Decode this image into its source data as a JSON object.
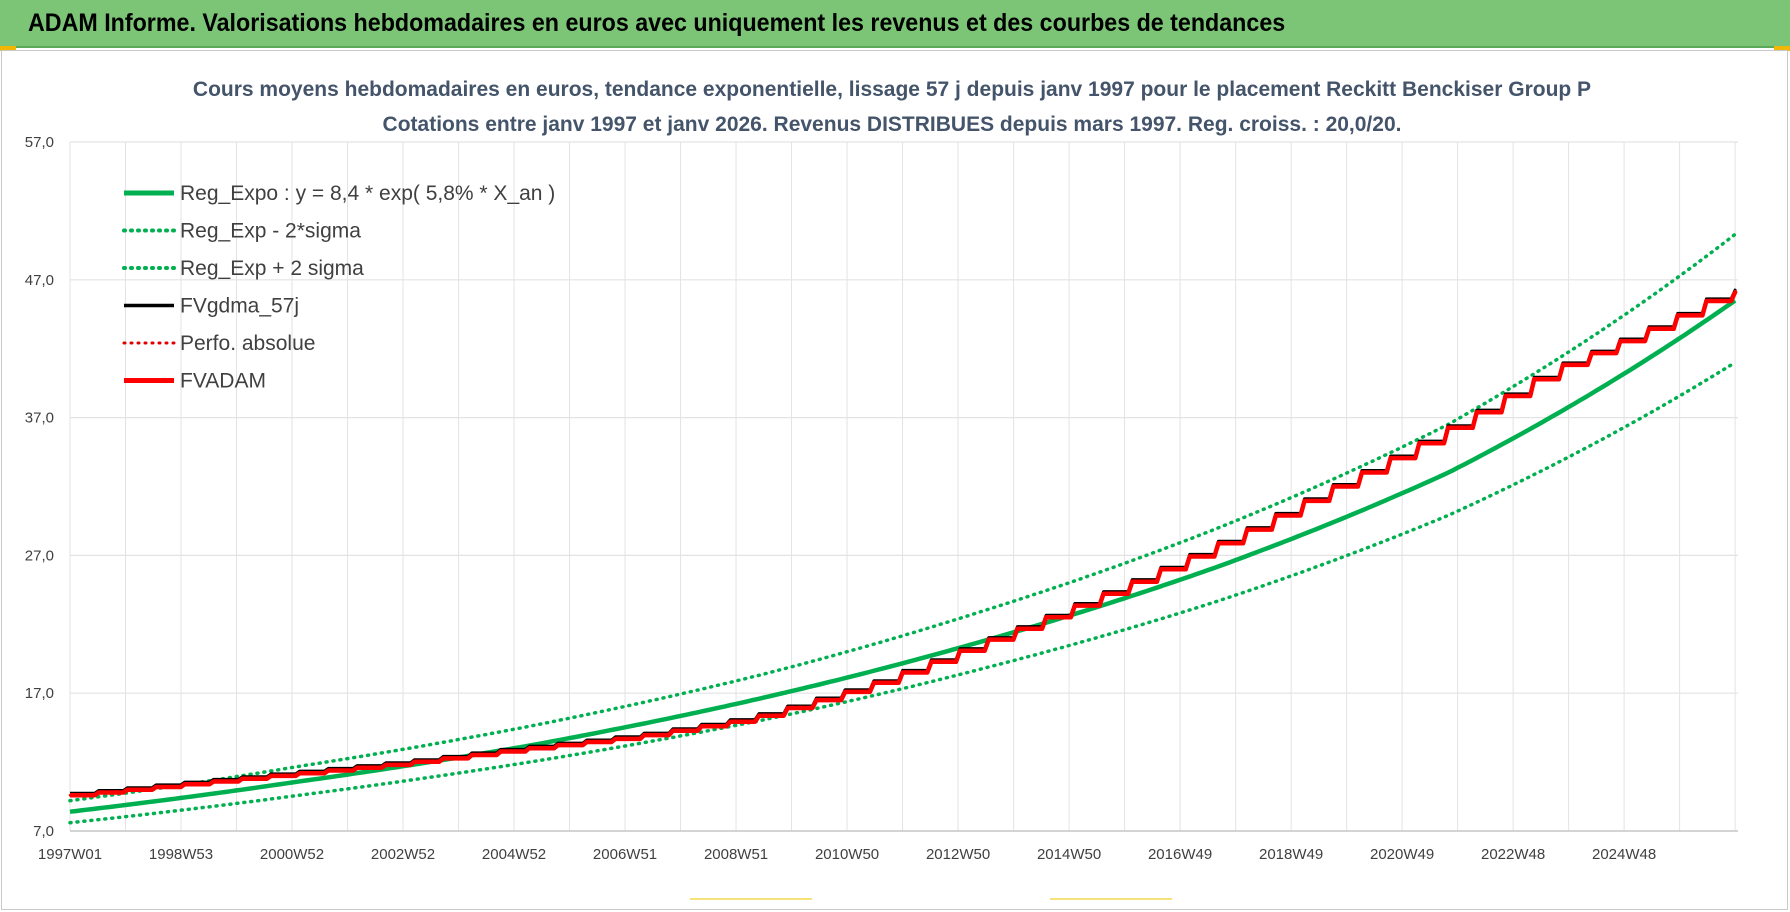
{
  "header": {
    "title": "ADAM Informe. Valorisations hebdomadaires en euros avec uniquement les revenus et des courbes de tendances"
  },
  "colors": {
    "banner": "#7cc576",
    "reg": "#00b050",
    "fvgdma": "#000000",
    "perf": "#e00000",
    "fvadam": "#ff0000",
    "grid": "#e3e3e3"
  },
  "chart_data": {
    "type": "line",
    "title": "Cours moyens hebdomadaires en euros, tendance exponentielle, lissage 57 j depuis janv 1997 pour le placement Reckitt Benckiser Group P",
    "subtitle": "Cotations entre janv 1997 et janv 2026. Revenus DISTRIBUES depuis mars 1997. Reg. croiss. : 20,0/20.",
    "ylim": [
      7,
      57
    ],
    "y_ticks": [
      "57,0",
      "47,0",
      "37,0",
      "27,0",
      "17,0",
      "7,0"
    ],
    "x_ticks": [
      "1997W01",
      "1998W53",
      "2000W52",
      "2002W52",
      "2004W52",
      "2006W51",
      "2008W51",
      "2010W50",
      "2012W50",
      "2014W50",
      "2016W49",
      "2018W49",
      "2020W49",
      "2022W48",
      "2024W48"
    ],
    "x_range_years": [
      1997.0,
      2026.05
    ],
    "grid": true,
    "legend_position": "top-left",
    "legend": [
      {
        "key": "reg",
        "label": "Reg_Expo : y = 8,4 * exp( 5,8% *  X_an )",
        "style": "solid"
      },
      {
        "key": "minus2",
        "label": "Reg_Exp - 2*sigma",
        "style": "dotted"
      },
      {
        "key": "plus2",
        "label": "Reg_Exp + 2 sigma",
        "style": "dotted"
      },
      {
        "key": "fvgdma",
        "label": "FVgdma_57j",
        "style": "solid"
      },
      {
        "key": "perf",
        "label": "Perfo. absolue",
        "style": "dotted"
      },
      {
        "key": "fvadam",
        "label": "FVADAM",
        "style": "solid"
      }
    ],
    "series": [
      {
        "name": "Reg_Expo : y = 8,4 * exp( 5,8% *  X_an )",
        "x": [
          1997,
          2001,
          2005,
          2009,
          2013,
          2017,
          2021,
          2026
        ],
        "values": [
          8.4,
          10.6,
          13.2,
          16.6,
          20.9,
          26.2,
          33.0,
          45.5
        ]
      },
      {
        "name": "Reg_Exp - 2*sigma",
        "x": [
          1997,
          2001,
          2005,
          2009,
          2013,
          2017,
          2021,
          2026
        ],
        "values": [
          7.6,
          9.6,
          12.0,
          15.0,
          18.9,
          23.7,
          29.9,
          41.0
        ]
      },
      {
        "name": "Reg_Exp + 2 sigma",
        "x": [
          1997,
          2001,
          2005,
          2009,
          2013,
          2017,
          2021,
          2026
        ],
        "values": [
          9.2,
          11.7,
          14.6,
          18.3,
          23.1,
          29.0,
          36.5,
          50.3
        ]
      },
      {
        "name": "FVgdma_57j",
        "x": [
          1997,
          1999,
          2001,
          2003,
          2005,
          2007,
          2009,
          2011,
          2013,
          2015,
          2017,
          2019,
          2021,
          2023,
          2025,
          2026.05
        ],
        "values": [
          9.5,
          10.3,
          11.1,
          11.9,
          12.9,
          13.8,
          15.1,
          17.4,
          20.5,
          23.8,
          27.4,
          31.5,
          35.7,
          40.4,
          43.9,
          46.1
        ]
      },
      {
        "name": "Perfo. absolue",
        "x": [
          1997,
          1999,
          2001,
          2003,
          2005,
          2007,
          2009,
          2011,
          2013,
          2015,
          2017,
          2019,
          2021,
          2023,
          2025,
          2026.05
        ],
        "values": [
          9.5,
          10.3,
          11.1,
          11.9,
          12.9,
          13.8,
          15.1,
          17.4,
          20.5,
          23.8,
          27.4,
          31.5,
          35.7,
          40.4,
          43.9,
          46.1
        ]
      },
      {
        "name": "FVADAM",
        "x": [
          1997,
          1999,
          2001,
          2003,
          2005,
          2007,
          2009,
          2011,
          2013,
          2015,
          2017,
          2019,
          2021,
          2023,
          2025,
          2026.05
        ],
        "values": [
          9.5,
          10.3,
          11.1,
          11.9,
          12.9,
          13.8,
          15.1,
          17.4,
          20.5,
          23.8,
          27.4,
          31.5,
          35.7,
          40.4,
          43.9,
          46.1
        ]
      }
    ]
  }
}
